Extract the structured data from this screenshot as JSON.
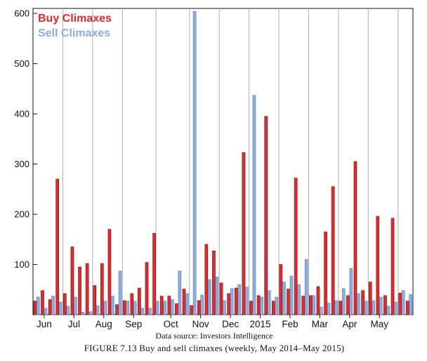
{
  "chart_data": {
    "type": "bar",
    "ylim": [
      0,
      610
    ],
    "yticks": [
      100,
      200,
      300,
      400,
      500,
      600
    ],
    "grid": "vertical",
    "legend_position": "top-left",
    "x_tick_labels": [
      "Jun",
      "Jul",
      "Aug",
      "Sep",
      "Oct",
      "Nov",
      "Dec",
      "2015",
      "Feb",
      "Mar",
      "Apr",
      "May"
    ],
    "x_tick_weeks": [
      1,
      5,
      9,
      13,
      18,
      22,
      26,
      30,
      34,
      38,
      42,
      46
    ],
    "gridline_weeks": [
      3,
      7,
      11,
      15.5,
      20,
      24,
      28,
      32,
      36,
      40,
      44,
      48
    ],
    "series": [
      {
        "name": "Buy Climaxes",
        "color": "#e8282b",
        "values": [
          27,
          48,
          30,
          270,
          42,
          135,
          95,
          102,
          58,
          102,
          170,
          20,
          28,
          42,
          53,
          104,
          162,
          37,
          37,
          22,
          51,
          18,
          28,
          140,
          127,
          63,
          42,
          53,
          323,
          27,
          38,
          395,
          27,
          100,
          51,
          272,
          37,
          38,
          56,
          165,
          255,
          27,
          38,
          305,
          48,
          65,
          196,
          38,
          192,
          43,
          27
        ]
      },
      {
        "name": "Sell Climaxes",
        "color": "#8aaede",
        "values": [
          35,
          13,
          37,
          25,
          17,
          35,
          5,
          6,
          18,
          27,
          37,
          87,
          27,
          27,
          13,
          13,
          27,
          27,
          30,
          87,
          42,
          604,
          39,
          70,
          75,
          28,
          52,
          60,
          55,
          437,
          35,
          48,
          35,
          65,
          77,
          60,
          110,
          38,
          15,
          23,
          28,
          52,
          92,
          42,
          27,
          28,
          35,
          17,
          25,
          48,
          40
        ]
      }
    ],
    "source": "Data source: Investors Intelligence",
    "caption": "FIGURE 7.13 Buy and sell climaxes (weekly, May 2014–May 2015)"
  }
}
